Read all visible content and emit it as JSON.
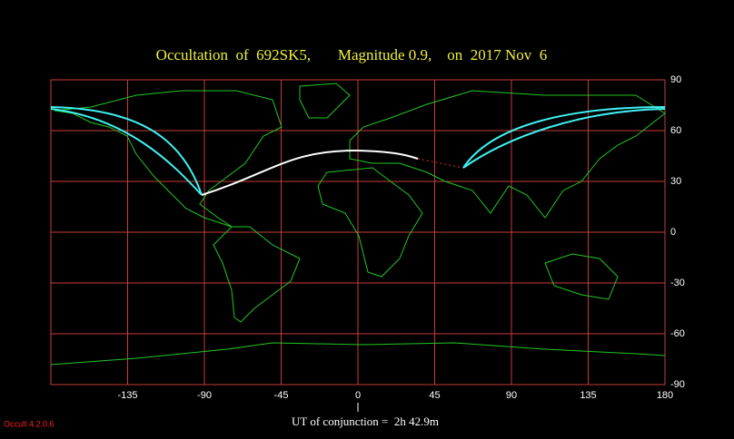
{
  "title": "Occultation  of  692SK5,       Magnitude 0.9,    on  2017 Nov  6",
  "map": {
    "xlim": [
      -180,
      180
    ],
    "ylim": [
      -90,
      90
    ],
    "xticks": [
      -135,
      -90,
      -45,
      0,
      45,
      90,
      135,
      180
    ],
    "yticks": [
      90,
      60,
      30,
      0,
      -30,
      -60,
      -90
    ]
  },
  "footer": "UT of conjunction =  2h 42.9m",
  "version": "Occult 4.2.0.6"
}
